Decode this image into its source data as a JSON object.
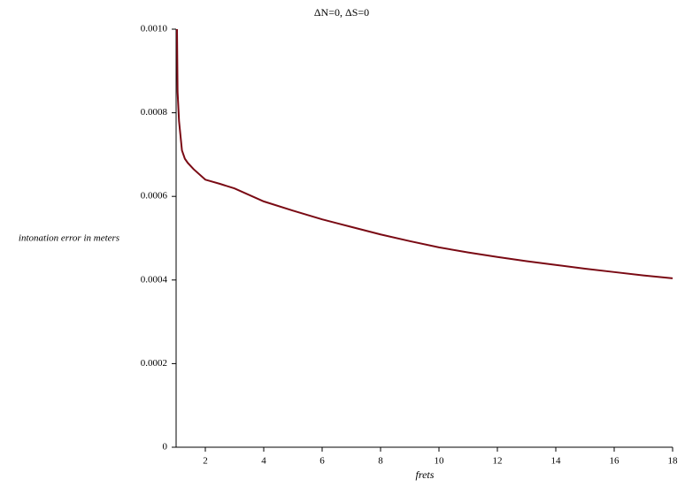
{
  "chart_data": {
    "type": "line",
    "title": "ΔN=0, ΔS=0",
    "x_label": "frets",
    "y_label": "intonation error in meters",
    "series": [
      {
        "name": "error",
        "color": "#7a0a14",
        "x": [
          1.03,
          1.05,
          1.1,
          1.2,
          1.3,
          1.4,
          1.6,
          2,
          2.5,
          3,
          4,
          5,
          6,
          7,
          8,
          9,
          10,
          11,
          12,
          13,
          14,
          15,
          16,
          17,
          18
        ],
        "values": [
          0.001,
          0.00085,
          0.00078,
          0.00071,
          0.00069,
          0.00068,
          0.000665,
          0.00064,
          0.00063,
          0.000619,
          0.000588,
          0.000566,
          0.000545,
          0.000527,
          0.000509,
          0.000493,
          0.000478,
          0.000466,
          0.000455,
          0.000445,
          0.000436,
          0.000427,
          0.000419,
          0.000411,
          0.000404
        ]
      }
    ],
    "xlim": [
      1,
      18
    ],
    "xticks": [
      2,
      4,
      6,
      8,
      10,
      12,
      14,
      16,
      18
    ],
    "ylim": [
      0,
      0.001
    ],
    "yticks": [
      0,
      0.0002,
      0.0004,
      0.0006,
      0.0008,
      {
        "value": 0.001,
        "label": "0.0010"
      }
    ]
  }
}
